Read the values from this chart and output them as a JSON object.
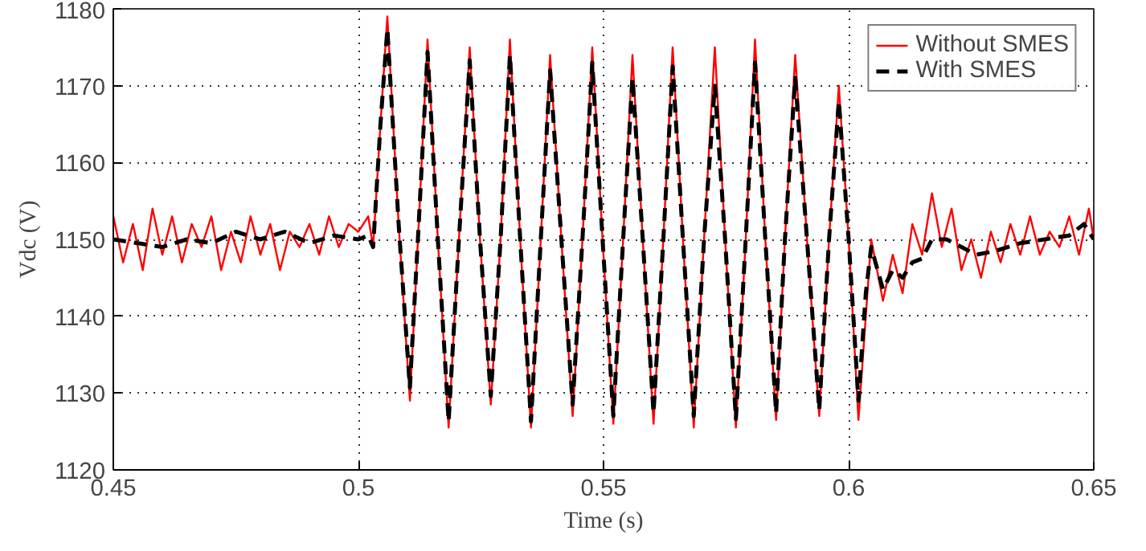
{
  "chart_data": {
    "type": "line",
    "xlabel": "Time (s)",
    "ylabel": "Vdc (V)",
    "xlim": [
      0.45,
      0.65
    ],
    "ylim": [
      1120,
      1180
    ],
    "xticks": [
      0.45,
      0.5,
      0.55,
      0.6,
      0.65
    ],
    "yticks": [
      1120,
      1130,
      1140,
      1150,
      1160,
      1170,
      1180
    ],
    "grid": true,
    "legend": "top right",
    "marker": "none",
    "series": [
      {
        "name": "Without SMES",
        "color": "#ff0000",
        "line_style": "solid",
        "x": [
          0.45,
          0.452,
          0.454,
          0.456,
          0.458,
          0.46,
          0.462,
          0.464,
          0.466,
          0.468,
          0.47,
          0.472,
          0.474,
          0.476,
          0.478,
          0.48,
          0.482,
          0.484,
          0.486,
          0.488,
          0.49,
          0.492,
          0.494,
          0.496,
          0.498,
          0.5,
          0.502,
          0.503,
          0.5045,
          0.5059,
          0.5082,
          0.5105,
          0.5123,
          0.5141,
          0.5162,
          0.5184,
          0.5205,
          0.5227,
          0.5248,
          0.527,
          0.529,
          0.5309,
          0.533,
          0.5352,
          0.5372,
          0.5391,
          0.5414,
          0.5437,
          0.5457,
          0.5477,
          0.5498,
          0.552,
          0.554,
          0.5559,
          0.558,
          0.5602,
          0.5622,
          0.5641,
          0.5662,
          0.5684,
          0.5705,
          0.5727,
          0.5748,
          0.577,
          0.579,
          0.5809,
          0.583,
          0.5852,
          0.587,
          0.5891,
          0.5915,
          0.594,
          0.596,
          0.598,
          0.6,
          0.602,
          0.6035,
          0.6046,
          0.607,
          0.609,
          0.611,
          0.613,
          0.615,
          0.617,
          0.619,
          0.621,
          0.623,
          0.625,
          0.627,
          0.629,
          0.631,
          0.633,
          0.635,
          0.637,
          0.639,
          0.641,
          0.643,
          0.645,
          0.647,
          0.649,
          0.65
        ],
        "values": [
          1153,
          1147,
          1152,
          1146,
          1154,
          1148,
          1153,
          1147,
          1152,
          1149,
          1153,
          1146,
          1151,
          1147,
          1153,
          1148,
          1152,
          1146,
          1151,
          1149,
          1152,
          1148,
          1153,
          1149,
          1152,
          1151,
          1153,
          1149,
          1165,
          1179,
          1152,
          1129,
          1152,
          1176,
          1150,
          1125.5,
          1150,
          1175,
          1150,
          1128.5,
          1150,
          1176,
          1150,
          1125.5,
          1150,
          1174,
          1150,
          1127,
          1150,
          1175,
          1150,
          1126,
          1150,
          1174,
          1150,
          1126,
          1150,
          1175,
          1150,
          1125.5,
          1150,
          1175,
          1150,
          1125.5,
          1150,
          1176,
          1150,
          1126.5,
          1150,
          1174,
          1150,
          1127,
          1150,
          1170,
          1150,
          1126.5,
          1140,
          1150,
          1142,
          1148,
          1143,
          1152,
          1148,
          1156,
          1149,
          1154,
          1146,
          1150,
          1145,
          1151,
          1147,
          1152,
          1148,
          1153,
          1148,
          1151,
          1149,
          1153,
          1148,
          1154,
          1150
        ]
      },
      {
        "name": "With SMES",
        "color": "#000000",
        "line_style": "dashed",
        "x": [
          0.45,
          0.455,
          0.46,
          0.465,
          0.47,
          0.475,
          0.48,
          0.485,
          0.49,
          0.495,
          0.5,
          0.502,
          0.503,
          0.5045,
          0.5059,
          0.5082,
          0.5105,
          0.5123,
          0.5141,
          0.5162,
          0.5184,
          0.5205,
          0.5227,
          0.5248,
          0.527,
          0.529,
          0.5309,
          0.533,
          0.5352,
          0.5372,
          0.5391,
          0.5414,
          0.5437,
          0.5457,
          0.5477,
          0.5498,
          0.552,
          0.554,
          0.5559,
          0.558,
          0.5602,
          0.5622,
          0.5641,
          0.5662,
          0.5684,
          0.5705,
          0.5727,
          0.5748,
          0.577,
          0.579,
          0.5809,
          0.583,
          0.5852,
          0.587,
          0.5891,
          0.5915,
          0.594,
          0.596,
          0.598,
          0.6,
          0.602,
          0.6035,
          0.6046,
          0.607,
          0.609,
          0.611,
          0.613,
          0.615,
          0.617,
          0.62,
          0.623,
          0.626,
          0.63,
          0.635,
          0.64,
          0.645,
          0.648,
          0.65
        ],
        "values": [
          1150,
          1149.5,
          1149,
          1150,
          1149.5,
          1151,
          1150,
          1151,
          1149.5,
          1150.5,
          1150,
          1150.5,
          1149,
          1165,
          1177.4,
          1152,
          1130.7,
          1152,
          1174.4,
          1150,
          1126.3,
          1150,
          1173.3,
          1150,
          1129.6,
          1150,
          1174,
          1150,
          1126.3,
          1150,
          1172,
          1150,
          1128.5,
          1150,
          1173,
          1150,
          1127,
          1150,
          1171,
          1150,
          1127.4,
          1150,
          1172.5,
          1150,
          1127,
          1150,
          1170,
          1150,
          1126.6,
          1150,
          1173,
          1150,
          1127.4,
          1150,
          1171,
          1150,
          1127.8,
          1150,
          1168,
          1150,
          1129,
          1143,
          1149,
          1143.5,
          1146,
          1145,
          1147,
          1147.5,
          1150,
          1150,
          1149,
          1148,
          1148.5,
          1149.5,
          1150,
          1150.5,
          1152,
          1150
        ]
      }
    ]
  }
}
